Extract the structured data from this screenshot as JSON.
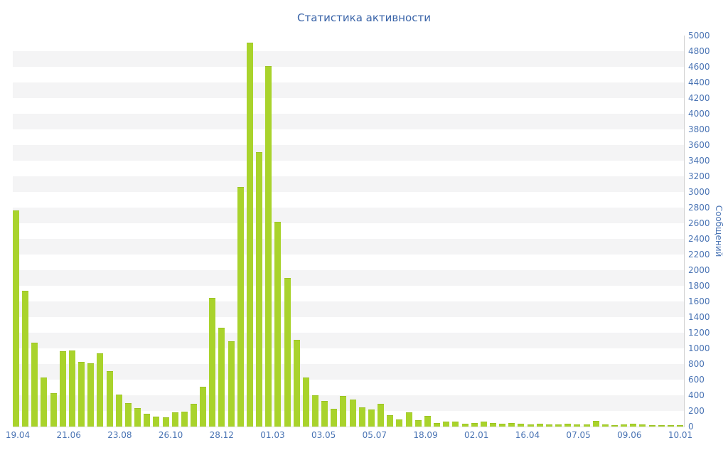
{
  "chart": {
    "title": "Статистика активности",
    "y_axis_title": "Сообщений"
  },
  "chart_data": {
    "type": "bar",
    "title": "Статистика активности",
    "xlabel": "",
    "ylabel": "Сообщений",
    "ylim": [
      0,
      5000
    ],
    "y_tick_step": 200,
    "grid": "horizontal-stripe-bands",
    "legend_position": "none",
    "bar_color": "#a9d32c",
    "x_tick_labels": [
      "19.04",
      "21.06",
      "23.08",
      "26.10",
      "28.12",
      "01.03",
      "03.05",
      "05.07",
      "18.09",
      "02.01",
      "16.04",
      "07.05",
      "09.06",
      "10.01"
    ],
    "values": [
      2750,
      1730,
      1060,
      620,
      420,
      950,
      960,
      820,
      800,
      930,
      700,
      400,
      290,
      230,
      150,
      120,
      110,
      170,
      180,
      280,
      500,
      1640,
      1250,
      1080,
      3050,
      4900,
      3500,
      4600,
      2610,
      1890,
      1100,
      620,
      390,
      320,
      220,
      380,
      340,
      240,
      210,
      280,
      140,
      80,
      170,
      70,
      130,
      40,
      50,
      50,
      30,
      40,
      50,
      40,
      30,
      40,
      30,
      20,
      30,
      20,
      20,
      30,
      20,
      20,
      60,
      20,
      10,
      20,
      30,
      20,
      10,
      10,
      10,
      10
    ]
  }
}
